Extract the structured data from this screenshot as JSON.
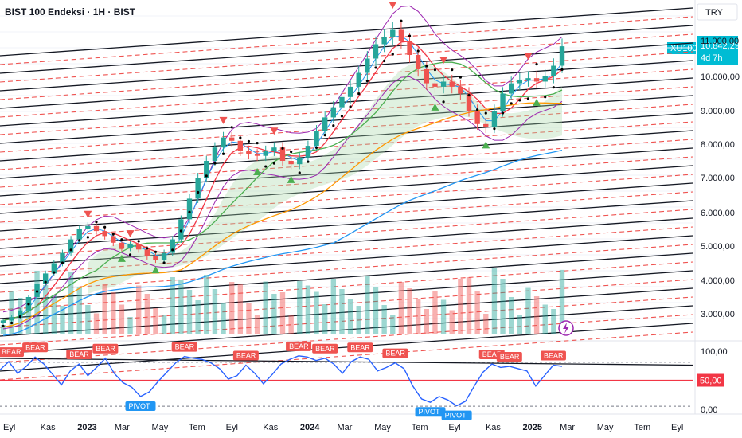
{
  "header": {
    "title": "BIST 100 Endeksi · 1H · BIST",
    "currency": "TRY"
  },
  "price_badge": {
    "symbol": "XU100",
    "price": "10.842,29",
    "countdown": "4d 7h"
  },
  "colors": {
    "background": "#ffffff",
    "up_candle": "#26a69a",
    "down_candle": "#ef5350",
    "bear_label": "#ef5350",
    "pivot_label": "#2196f3",
    "rsi_line": "#2962ff",
    "rsi_midline": "#f23645",
    "bollinger": "#9c27b0",
    "ema_fast": "#2196f3",
    "ema_slow": "#f23645",
    "sma_green": "#4caf50",
    "sma_orange": "#ff9800",
    "sma_blue": "#2196f3",
    "cloud": "#a5d6a7",
    "badge_bg": "#00bcd4"
  },
  "chart_data": [
    {
      "type": "candlestick",
      "title": "BIST 100 Endeksi · 1H · BIST",
      "y_axis_ticks": [
        "11.000,00",
        "10.000,00",
        "9.000,00",
        "8.000,00",
        "7.000,00",
        "6.000,00",
        "5.000,00",
        "4.000,00",
        "3.000,00"
      ],
      "y_axis_values": [
        11000,
        10000,
        9000,
        8000,
        7000,
        6000,
        5000,
        4000,
        3000
      ],
      "ylim": [
        2500,
        12200
      ],
      "x_axis_ticks": [
        "Eyl",
        "Kas",
        "2023",
        "Mar",
        "May",
        "Tem",
        "Eyl",
        "Kas",
        "2024",
        "Mar",
        "May",
        "Tem",
        "Eyl",
        "Kas",
        "2025",
        "Mar",
        "May",
        "Tem",
        "Eyl"
      ],
      "x_axis_bold": [
        "2023",
        "2024",
        "2025"
      ],
      "last_price": 10842.29,
      "candles_estimated_close": [
        2800,
        2900,
        3100,
        3500,
        3900,
        4200,
        4500,
        4800,
        5200,
        5500,
        5600,
        5450,
        5300,
        5100,
        4950,
        5050,
        4900,
        4700,
        4600,
        4800,
        5200,
        5800,
        6400,
        7000,
        7500,
        7900,
        8200,
        8100,
        7800,
        7700,
        7650,
        7800,
        7900,
        7500,
        7400,
        7600,
        7950,
        8400,
        8800,
        9100,
        9400,
        9700,
        10100,
        10500,
        10900,
        11100,
        11300,
        11000,
        10600,
        10200,
        9800,
        9700,
        9850,
        9700,
        9500,
        9000,
        8600,
        8500,
        9000,
        9500,
        9800,
        9900,
        9950,
        9850,
        10000,
        10300,
        10842
      ],
      "bear_signals": 13,
      "pivot_signals": 3
    },
    {
      "type": "line",
      "title": "",
      "y_axis_ticks": [
        "100,00",
        "50,00",
        "0,00"
      ],
      "y_axis_values": [
        100,
        50,
        0
      ],
      "ylim": [
        -8,
        110
      ],
      "current_value_badge": "50,00",
      "series": [
        {
          "values": [
            68,
            82,
            62,
            74,
            90,
            78,
            60,
            42,
            66,
            78,
            58,
            72,
            88,
            62,
            46,
            38,
            22,
            30,
            48,
            64,
            80,
            91,
            88,
            86,
            80,
            70,
            52,
            58,
            76,
            62,
            44,
            60,
            78,
            86,
            92,
            90,
            84,
            88,
            78,
            62,
            82,
            90,
            86,
            66,
            72,
            80,
            70,
            40,
            18,
            12,
            22,
            16,
            6,
            14,
            40,
            64,
            78,
            72,
            74,
            70,
            66,
            40,
            58,
            76,
            74
          ]
        }
      ],
      "signal_labels": [
        "BEAR",
        "BEAR",
        "BEAR",
        "BEAR",
        "BEAR",
        "BEAR",
        "BEAR",
        "BEAR",
        "BEAR",
        "BEAR",
        "BEAR",
        "BEAR",
        "BEAR",
        "PIVOT",
        "PIVOT",
        "PIVOT"
      ]
    }
  ]
}
